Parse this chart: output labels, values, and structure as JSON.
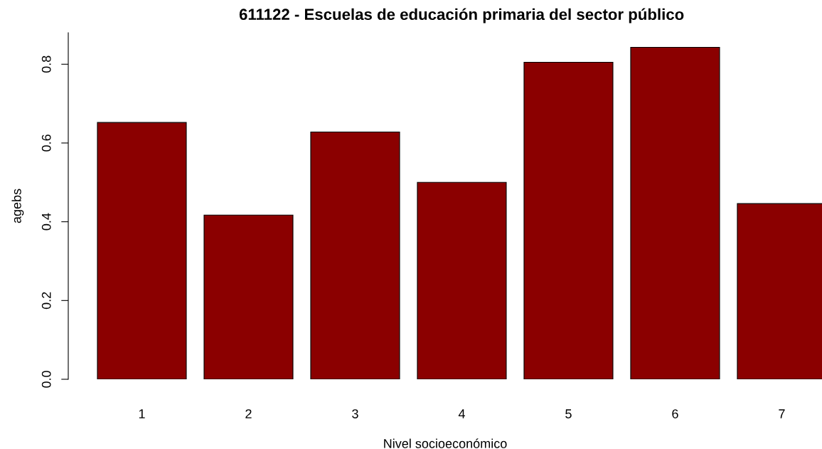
{
  "chart_data": {
    "type": "bar",
    "title": "611122 - Escuelas de educación primaria del sector público",
    "xlabel": "Nivel socioeconómico",
    "ylabel": "agebs",
    "categories": [
      "1",
      "2",
      "3",
      "4",
      "5",
      "6",
      "7"
    ],
    "values": [
      0.652,
      0.417,
      0.628,
      0.5,
      0.805,
      0.843,
      0.446
    ],
    "color": "#8b0000",
    "ylim": [
      0,
      0.88
    ],
    "yticks": [
      {
        "value": 0,
        "label": "0.0"
      },
      {
        "value": 0.2,
        "label": "0.2"
      },
      {
        "value": 0.4,
        "label": "0.4"
      },
      {
        "value": 0.6,
        "label": "0.6"
      },
      {
        "value": 0.8,
        "label": "0.8"
      }
    ],
    "grid": false
  }
}
